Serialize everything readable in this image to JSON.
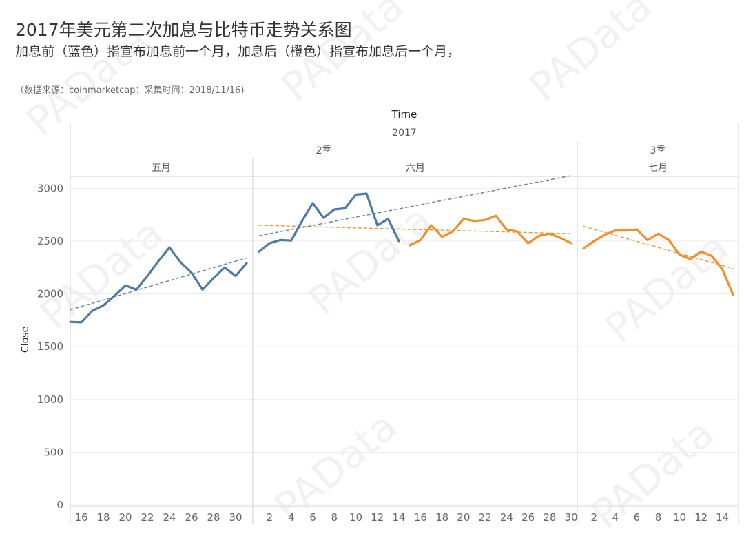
{
  "title": "2017年美元第二次加息与比特币走势关系图",
  "subtitle": "加息前（蓝色）指宣布加息前一个月，加息后（橙色）指宣布加息后一个月，",
  "source": "（数据来源：coinmarketcap；采集时间：2018/11/16)",
  "watermark": "PAData",
  "chart_data": {
    "type": "line",
    "xlabel": "Time",
    "ylabel": "Close",
    "ylim": [
      0,
      3100
    ],
    "yticks": [
      0,
      500,
      1000,
      1500,
      2000,
      2500,
      3000
    ],
    "headers": {
      "year": "2017",
      "quarters": [
        {
          "label": "2季",
          "months": [
            "五月",
            "六月"
          ]
        },
        {
          "label": "3季",
          "months": [
            "七月"
          ]
        }
      ]
    },
    "panels": [
      {
        "month": "五月",
        "x_range": [
          15,
          31.5
        ],
        "ticks": [
          16,
          18,
          20,
          22,
          24,
          26,
          28,
          30
        ]
      },
      {
        "month": "六月",
        "x_range": [
          0.5,
          30.5
        ],
        "ticks": [
          2,
          4,
          6,
          8,
          10,
          12,
          14,
          16,
          18,
          20,
          22,
          24,
          26,
          28,
          30
        ]
      },
      {
        "month": "七月",
        "x_range": [
          0.5,
          15.5
        ],
        "ticks": [
          2,
          4,
          6,
          8,
          10,
          12,
          14
        ]
      }
    ],
    "series": [
      {
        "name": "加息前",
        "color": "#4e79a7",
        "segments": [
          {
            "panel": 0,
            "x": [
              15,
              16,
              17,
              18,
              19,
              20,
              21,
              22,
              23,
              24,
              25,
              26,
              27,
              28,
              29,
              30,
              31
            ],
            "y": [
              1735,
              1730,
              1840,
              1890,
              1980,
              2080,
              2040,
              2170,
              2310,
              2440,
              2300,
              2200,
              2040,
              2150,
              2250,
              2170,
              2290
            ]
          },
          {
            "panel": 1,
            "x": [
              1,
              2,
              3,
              4,
              5,
              6,
              7,
              8,
              9,
              10,
              11,
              12,
              13,
              14
            ],
            "y": [
              2400,
              2480,
              2510,
              2505,
              2690,
              2860,
              2720,
              2800,
              2810,
              2940,
              2950,
              2650,
              2710,
              2500
            ]
          }
        ],
        "trend": [
          {
            "panel": 0,
            "x": [
              15,
              31
            ],
            "y": [
              1850,
              2340
            ]
          },
          {
            "panel": 1,
            "x": [
              1,
              30
            ],
            "y": [
              2550,
              3120
            ]
          }
        ]
      },
      {
        "name": "加息后",
        "color": "#f28e2b",
        "segments": [
          {
            "panel": 1,
            "x": [
              15,
              16,
              17,
              18,
              19,
              20,
              21,
              22,
              23,
              24,
              25,
              26,
              27,
              28,
              29,
              30
            ],
            "y": [
              2460,
              2510,
              2650,
              2540,
              2590,
              2710,
              2690,
              2700,
              2740,
              2610,
              2590,
              2480,
              2550,
              2570,
              2530,
              2480
            ]
          },
          {
            "panel": 2,
            "x": [
              1,
              2,
              3,
              4,
              5,
              6,
              7,
              8,
              9,
              10,
              11,
              12,
              13,
              14,
              15
            ],
            "y": [
              2430,
              2500,
              2560,
              2600,
              2600,
              2610,
              2510,
              2570,
              2510,
              2370,
              2330,
              2400,
              2360,
              2230,
              1990
            ]
          }
        ],
        "trend": [
          {
            "panel": 1,
            "x": [
              1,
              30
            ],
            "y": [
              2650,
              2570
            ]
          },
          {
            "panel": 2,
            "x": [
              1,
              15
            ],
            "y": [
              2640,
              2240
            ]
          }
        ]
      }
    ],
    "grid": true,
    "legend": "none"
  }
}
